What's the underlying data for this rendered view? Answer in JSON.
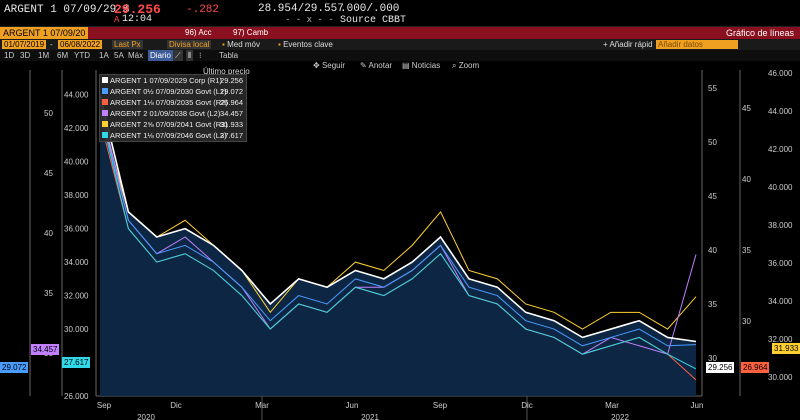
{
  "quote": {
    "ticker": "ARGENT 1 07/09/29 $",
    "price": "29.256",
    "arrow": "A",
    "time": "12:04",
    "change": "-.282",
    "bid_ask": "28.954/29.557",
    "bid_ask_sep": "- - x - -",
    "yield": ".000/.000",
    "source": "Source CBBT"
  },
  "command_bar": {
    "security": "ARGENT 1 07/09/20",
    "acc_label": "96) Acc",
    "camb_label": "97) Camb",
    "title": "Gráfico de líneas"
  },
  "settings": {
    "start_date": "01/07/2019",
    "end_date": "06/08/2022",
    "field": "Last Px",
    "currency": "Divisa local",
    "avg": "Med móv",
    "events": "Eventos clave",
    "quick_add": "Añadir rápid",
    "add_placeholder": "Añadir datos"
  },
  "periods": {
    "items": [
      "1D",
      "3D",
      "1M",
      "6M",
      "YTD",
      "1A",
      "5A",
      "Máx"
    ],
    "frequency": "Diario",
    "tabla": "Tabla"
  },
  "toolbar": {
    "seguir": "Seguir",
    "anotar": "Anotar",
    "noticias": "Noticias",
    "zoom": "Zoom"
  },
  "chart_label": "Último precio",
  "legend": [
    {
      "name": "ARGENT 1 07/09/2029 Corp  (R1)",
      "value": "29.256",
      "color": "#ffffff"
    },
    {
      "name": "ARGENT 0½  07/09/2030 Govt  (L1)",
      "value": "29.072",
      "color": "#4a9cff"
    },
    {
      "name": "ARGENT 1⅛  07/09/2035 Govt  (R2)",
      "value": "26.964",
      "color": "#ff6040"
    },
    {
      "name": "ARGENT 2 01/09/2038 Govt  (L2)",
      "value": "34.457",
      "color": "#c080ff"
    },
    {
      "name": "ARGENT 2⅝  07/09/2041 Govt  (R3)",
      "value": "31.933",
      "color": "#ffd030"
    },
    {
      "name": "ARGENT 1⅛  07/09/2046 Govt  (L3)",
      "value": "27.617",
      "color": "#30d8e8"
    }
  ],
  "axes": {
    "l1_ticks": [
      "44.000",
      "42.000",
      "40.000",
      "38.000",
      "36.000",
      "34.000",
      "32.000",
      "30.000",
      "28.000",
      "26.000"
    ],
    "l2_ticks": [
      "50",
      "45",
      "40",
      "35",
      "30"
    ],
    "r1_ticks": [
      "55",
      "50",
      "45",
      "40",
      "35",
      "30"
    ],
    "r2_ticks": [
      "45",
      "40",
      "35",
      "30"
    ],
    "r3_ticks": [
      "46.000",
      "44.000",
      "42.000",
      "40.000",
      "38.000",
      "36.000",
      "34.000",
      "32.000",
      "30.000"
    ],
    "months": [
      "Sep",
      "Dic",
      "Mar",
      "Jun",
      "Sep",
      "Dic",
      "Mar",
      "Jun"
    ],
    "years": [
      "2020",
      "2021",
      "2022"
    ]
  },
  "chart_data": {
    "type": "line",
    "title": "",
    "ylabel": "",
    "x": [
      "2020-09-01",
      "2020-10-01",
      "2020-11-01",
      "2020-12-01",
      "2021-01-01",
      "2021-02-01",
      "2021-03-01",
      "2021-04-01",
      "2021-05-01",
      "2021-06-01",
      "2021-07-01",
      "2021-08-01",
      "2021-09-01",
      "2021-10-01",
      "2021-11-01",
      "2021-12-01",
      "2022-01-01",
      "2022-02-01",
      "2022-03-01",
      "2022-04-01",
      "2022-05-01",
      "2022-06-01"
    ],
    "series": [
      {
        "name": "ARGENT 1 07/09/2029 Corp (R1)",
        "values": [
          44.0,
          37.0,
          35.5,
          36.0,
          35.0,
          33.5,
          31.5,
          33.0,
          32.5,
          33.5,
          33.0,
          34.0,
          35.5,
          33.0,
          32.5,
          31.0,
          30.5,
          29.5,
          30.0,
          30.5,
          29.5,
          29.256
        ]
      },
      {
        "name": "ARGENT 0½ 07/09/2030 Govt (L1)",
        "values": [
          43.0,
          36.5,
          34.5,
          35.0,
          34.0,
          32.5,
          30.5,
          32.0,
          31.5,
          33.0,
          32.5,
          33.5,
          35.0,
          32.5,
          32.0,
          30.5,
          30.0,
          29.0,
          29.5,
          30.0,
          29.0,
          29.072
        ]
      },
      {
        "name": "ARGENT 1⅛ 07/09/2035 Govt (R2)",
        "values": [
          42.5,
          36.0,
          34.0,
          34.5,
          33.5,
          32.0,
          30.0,
          31.5,
          31.0,
          32.5,
          32.0,
          33.0,
          34.5,
          32.0,
          31.5,
          30.0,
          29.5,
          28.5,
          29.0,
          29.5,
          28.5,
          26.964
        ]
      },
      {
        "name": "ARGENT 2 01/09/2038 Govt (L2)",
        "values": [
          43.5,
          36.5,
          34.5,
          35.5,
          34.0,
          32.5,
          30.0,
          31.5,
          31.0,
          32.5,
          32.5,
          33.5,
          35.0,
          32.0,
          31.5,
          30.0,
          29.5,
          28.5,
          29.5,
          29.0,
          28.5,
          34.457
        ]
      },
      {
        "name": "ARGENT 2⅝ 07/09/2041 Govt (R3)",
        "values": [
          43.0,
          37.0,
          35.5,
          36.5,
          35.0,
          33.5,
          31.0,
          33.0,
          32.5,
          34.0,
          33.5,
          35.0,
          37.0,
          33.5,
          33.0,
          31.5,
          31.0,
          30.0,
          31.0,
          31.0,
          30.0,
          31.933
        ]
      },
      {
        "name": "ARGENT 1⅛ 07/09/2046 Govt (L3)",
        "values": [
          43.0,
          36.0,
          34.0,
          34.5,
          33.5,
          32.0,
          30.0,
          31.5,
          31.0,
          32.5,
          32.0,
          33.0,
          34.5,
          32.0,
          31.5,
          30.0,
          29.5,
          28.5,
          29.0,
          29.5,
          28.5,
          27.617
        ]
      }
    ],
    "ylim": [
      26,
      45
    ]
  }
}
